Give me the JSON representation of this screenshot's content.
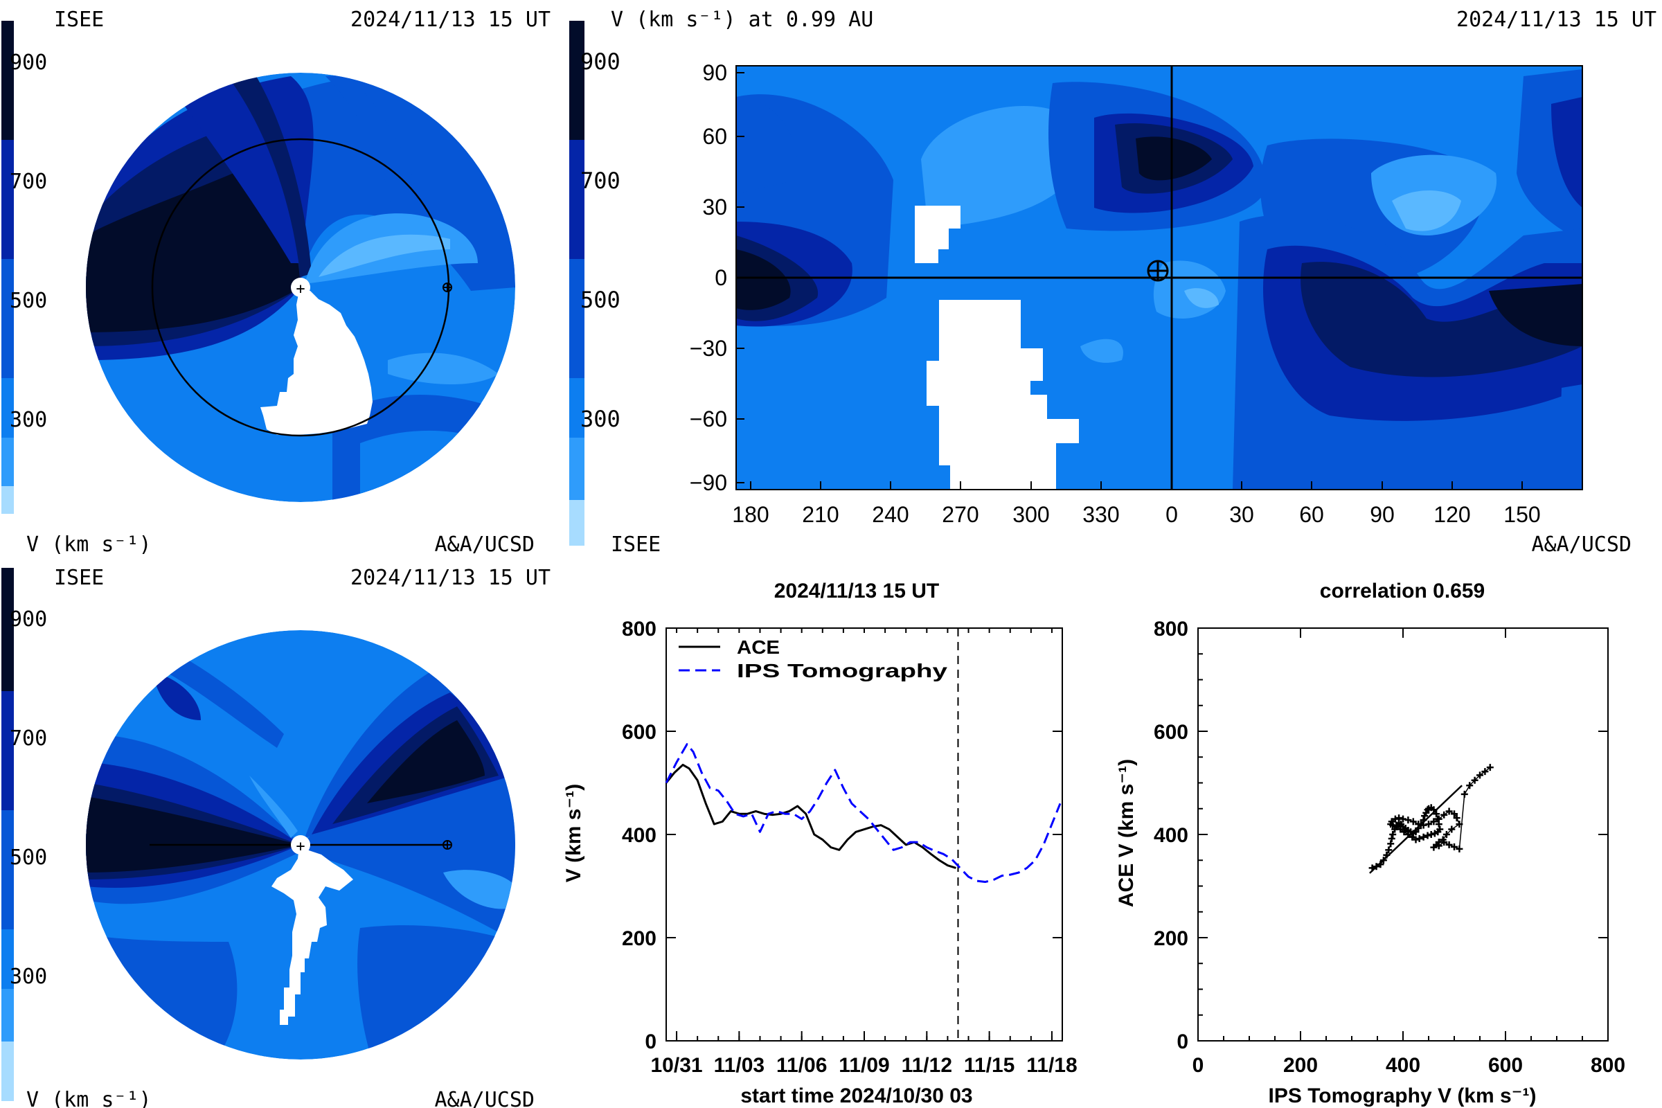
{
  "colors": {
    "v900": "#020c2a",
    "v800": "#031a66",
    "v700": "#0425a8",
    "v600": "#0656d6",
    "v500": "#0d7ef0",
    "v400": "#2f9cfb",
    "v300": "#5ab8ff",
    "v200": "#a7dcff",
    "nodata": "#ffffff",
    "ips_line": "#0000ff",
    "ace_line": "#000000"
  },
  "colorbar": {
    "ticks": [
      "900",
      "700",
      "500",
      "300"
    ],
    "label": "V (km s⁻¹)"
  },
  "panel_tl": {
    "source": "ISEE",
    "datetime": "2024/11/13 15 UT",
    "bar_label": "V (km s⁻¹)",
    "credit": "A&A/UCSD"
  },
  "panel_tr": {
    "title": "V (km s⁻¹) at 0.99 AU",
    "datetime": "2024/11/13 15 UT",
    "source": "ISEE",
    "credit": "A&A/UCSD",
    "x_ticks": [
      "180",
      "210",
      "240",
      "270",
      "300",
      "330",
      "0",
      "30",
      "60",
      "90",
      "120",
      "150"
    ],
    "y_ticks": [
      "90",
      "60",
      "30",
      "0",
      "−30",
      "−60",
      "−90"
    ]
  },
  "panel_bl": {
    "source": "ISEE",
    "datetime": "2024/11/13 15 UT",
    "bar_label": "V (km s⁻¹)",
    "credit": "A&A/UCSD"
  },
  "chart_data": [
    {
      "type": "line",
      "title": "2024/11/13 15 UT",
      "xlabel": "start time 2024/10/30 03",
      "ylabel": "V (km s⁻¹)",
      "xlim": [
        0.5,
        19.5
      ],
      "ylim": [
        0,
        800
      ],
      "x_tick_labels": [
        "10/31",
        "11/03",
        "11/06",
        "11/09",
        "11/12",
        "11/15",
        "11/18"
      ],
      "x_tick_values": [
        1,
        4,
        7,
        10,
        13,
        16,
        19
      ],
      "y_tick_labels": [
        "0",
        "200",
        "400",
        "600",
        "800"
      ],
      "y_tick_values": [
        0,
        200,
        400,
        600,
        800
      ],
      "now_marker": 14.5,
      "legend_position": "top-left",
      "series": [
        {
          "name": "ACE",
          "style": "solid",
          "x": [
            0.5,
            0.9,
            1.3,
            1.6,
            2.0,
            2.4,
            2.8,
            3.2,
            3.6,
            4.0,
            4.4,
            4.8,
            5.2,
            5.6,
            6.0,
            6.4,
            6.8,
            7.2,
            7.6,
            8.0,
            8.4,
            8.8,
            9.2,
            9.6,
            10.0,
            10.4,
            10.8,
            11.2,
            11.6,
            12.0,
            12.4,
            12.8,
            13.2,
            13.6,
            14.0,
            14.4
          ],
          "y": [
            500,
            520,
            535,
            528,
            505,
            460,
            420,
            425,
            445,
            440,
            440,
            445,
            440,
            438,
            440,
            445,
            455,
            440,
            400,
            390,
            375,
            370,
            390,
            405,
            410,
            415,
            418,
            410,
            395,
            380,
            385,
            375,
            362,
            350,
            340,
            335
          ]
        },
        {
          "name": "IPS Tomography",
          "style": "dashed",
          "x": [
            0.5,
            1.0,
            1.5,
            1.8,
            2.2,
            2.6,
            3.0,
            3.4,
            3.8,
            4.2,
            4.6,
            5.0,
            5.4,
            5.8,
            6.2,
            6.6,
            7.0,
            7.4,
            7.8,
            8.2,
            8.6,
            9.0,
            9.4,
            9.8,
            10.2,
            10.6,
            11.0,
            11.4,
            11.8,
            12.2,
            12.6,
            13.0,
            13.4,
            13.8,
            14.2,
            14.6,
            15.0,
            15.4,
            15.8,
            16.2,
            16.6,
            17.0,
            17.4,
            17.8,
            18.2,
            18.6,
            19.0,
            19.4
          ],
          "y": [
            500,
            540,
            575,
            560,
            520,
            490,
            485,
            465,
            440,
            435,
            440,
            405,
            440,
            445,
            440,
            440,
            430,
            445,
            470,
            500,
            525,
            490,
            460,
            445,
            430,
            410,
            390,
            370,
            375,
            385,
            385,
            375,
            368,
            362,
            352,
            335,
            318,
            310,
            308,
            312,
            320,
            322,
            326,
            335,
            350,
            380,
            420,
            460
          ]
        }
      ]
    },
    {
      "type": "scatter",
      "title": "correlation 0.659",
      "xlabel": "IPS Tomography V (km s⁻¹)",
      "ylabel": "ACE V (km s⁻¹)",
      "xlim": [
        0,
        800
      ],
      "ylim": [
        0,
        800
      ],
      "x_tick_labels": [
        "0",
        "200",
        "400",
        "600",
        "800"
      ],
      "y_tick_labels": [
        "0",
        "200",
        "400",
        "600",
        "800"
      ],
      "fit_line": {
        "x": [
          335,
          515
        ],
        "y": [
          325,
          495
        ]
      },
      "points": {
        "x": [
          340,
          348,
          356,
          362,
          368,
          372,
          376,
          378,
          380,
          384,
          388,
          392,
          396,
          400,
          405,
          410,
          415,
          420,
          425,
          430,
          435,
          440,
          442,
          445,
          448,
          450,
          455,
          460,
          465,
          468,
          470,
          472,
          468,
          462,
          455,
          448,
          440,
          432,
          425,
          418,
          410,
          402,
          395,
          388,
          380,
          376,
          378,
          385,
          392,
          400,
          410,
          420,
          430,
          440,
          450,
          460,
          470,
          480,
          490,
          500,
          505,
          510,
          495,
          485,
          478,
          470,
          465,
          460,
          470,
          480,
          490,
          500,
          510,
          520,
          530,
          540,
          550,
          560,
          570
        ],
        "y": [
          335,
          338,
          342,
          350,
          360,
          370,
          382,
          392,
          400,
          410,
          418,
          422,
          420,
          415,
          412,
          408,
          405,
          402,
          405,
          412,
          420,
          428,
          436,
          442,
          448,
          450,
          452,
          448,
          440,
          430,
          420,
          410,
          405,
          402,
          400,
          398,
          395,
          392,
          390,
          395,
          400,
          405,
          410,
          415,
          418,
          420,
          425,
          430,
          432,
          430,
          428,
          425,
          420,
          418,
          420,
          425,
          430,
          438,
          445,
          440,
          432,
          420,
          410,
          400,
          390,
          385,
          380,
          375,
          378,
          385,
          380,
          376,
          372,
          478,
          495,
          505,
          515,
          522,
          530
        ]
      }
    }
  ]
}
